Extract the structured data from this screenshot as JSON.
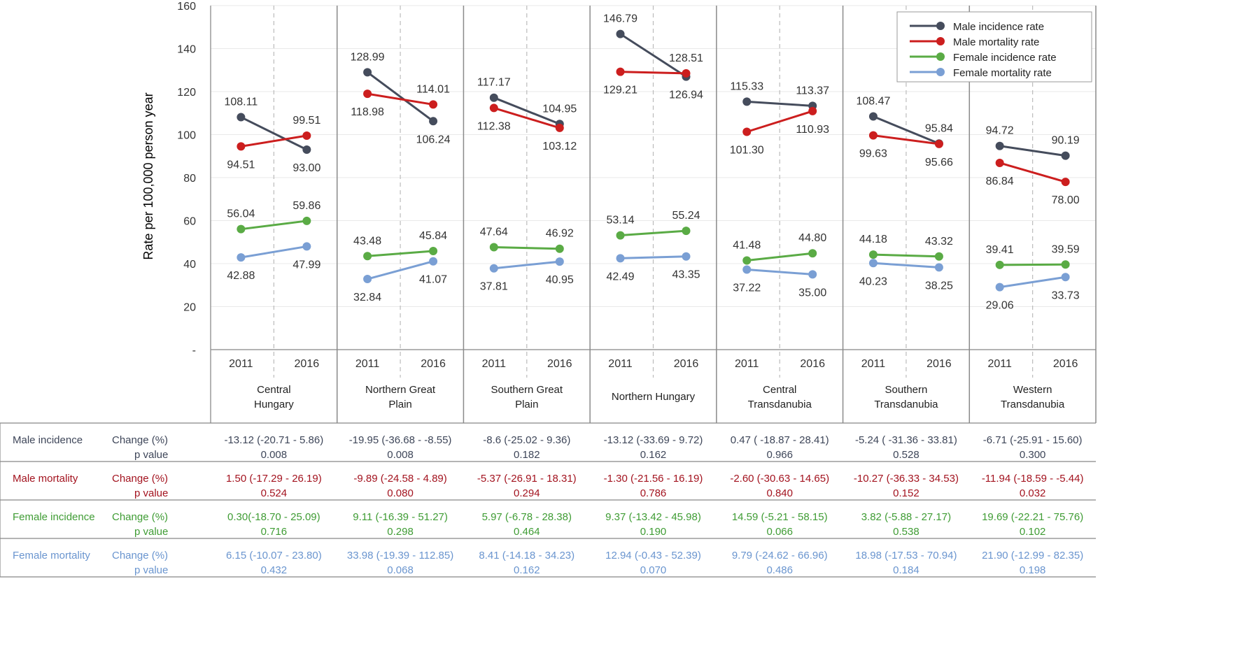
{
  "chart_data": {
    "type": "line",
    "ylabel": "Rate per 100,000 person year",
    "ylim": [
      0,
      160
    ],
    "yticks": [
      "-",
      "20",
      "40",
      "60",
      "80",
      "100",
      "120",
      "140",
      "160"
    ],
    "years": [
      "2011",
      "2016"
    ],
    "colors": {
      "male_incidence": "#454c5c",
      "male_mortality": "#cc1e1e",
      "female_incidence": "#5aab45",
      "female_mortality": "#7a9fd4"
    },
    "legend": {
      "position": "top-right",
      "entries": [
        "Male incidence rate",
        "Male mortality rate",
        "Female incidence rate",
        "Female mortality rate"
      ]
    },
    "regions": [
      {
        "name_lines": [
          "Central",
          "Hungary"
        ],
        "male_incidence": [
          108.11,
          93.0
        ],
        "male_mortality": [
          94.51,
          99.51
        ],
        "female_incidence": [
          56.04,
          59.86
        ],
        "female_mortality": [
          42.88,
          47.99
        ]
      },
      {
        "name_lines": [
          "Northern Great",
          "Plain"
        ],
        "male_incidence": [
          128.99,
          106.24
        ],
        "male_mortality": [
          118.98,
          114.01
        ],
        "female_incidence": [
          43.48,
          45.84
        ],
        "female_mortality": [
          32.84,
          41.07
        ]
      },
      {
        "name_lines": [
          "Southern Great",
          "Plain"
        ],
        "male_incidence": [
          117.17,
          104.95
        ],
        "male_mortality": [
          112.38,
          103.12
        ],
        "female_incidence": [
          47.64,
          46.92
        ],
        "female_mortality": [
          37.81,
          40.95
        ]
      },
      {
        "name_lines": [
          "Northern Hungary"
        ],
        "male_incidence": [
          146.79,
          126.94
        ],
        "male_mortality": [
          129.21,
          128.51
        ],
        "female_incidence": [
          53.14,
          55.24
        ],
        "female_mortality": [
          42.49,
          43.35
        ]
      },
      {
        "name_lines": [
          "Central",
          "Transdanubia"
        ],
        "male_incidence": [
          115.33,
          113.37
        ],
        "male_mortality": [
          101.3,
          110.93
        ],
        "female_incidence": [
          41.48,
          44.8
        ],
        "female_mortality": [
          37.22,
          35.0
        ]
      },
      {
        "name_lines": [
          "Southern",
          "Transdanubia"
        ],
        "male_incidence": [
          108.47,
          95.84
        ],
        "male_mortality": [
          99.63,
          95.66
        ],
        "female_incidence": [
          44.18,
          43.32
        ],
        "female_mortality": [
          40.23,
          38.25
        ]
      },
      {
        "name_lines": [
          "Western",
          "Transdanubia"
        ],
        "male_incidence": [
          94.72,
          90.19
        ],
        "male_mortality": [
          86.84,
          78.0
        ],
        "female_incidence": [
          39.41,
          39.59
        ],
        "female_mortality": [
          29.06,
          33.73
        ]
      }
    ],
    "labels": [
      [
        [
          "108.11",
          "93.00"
        ],
        [
          "94.51",
          "99.51"
        ],
        [
          "56.04",
          "59.86"
        ],
        [
          "42.88",
          "47.99"
        ]
      ],
      [
        [
          "128.99",
          "106.24"
        ],
        [
          "118.98",
          "114.01"
        ],
        [
          "43.48",
          "45.84"
        ],
        [
          "32.84",
          "41.07"
        ]
      ],
      [
        [
          "117.17",
          "104.95"
        ],
        [
          "112.38",
          "103.12"
        ],
        [
          "47.64",
          "46.92"
        ],
        [
          "37.81",
          "40.95"
        ]
      ],
      [
        [
          "146.79",
          "126.94"
        ],
        [
          "129.21",
          "128.51"
        ],
        [
          "53.14",
          "55.24"
        ],
        [
          "42.49",
          "43.35"
        ]
      ],
      [
        [
          "115.33",
          "113.37"
        ],
        [
          "101.30",
          "110.93"
        ],
        [
          "41.48",
          "44.80"
        ],
        [
          "37.22",
          "35.00"
        ]
      ],
      [
        [
          "108.47",
          "95.84"
        ],
        [
          "99.63",
          "95.66"
        ],
        [
          "44.18",
          "43.32"
        ],
        [
          "40.23",
          "38.25"
        ]
      ],
      [
        [
          "94.72",
          "90.19"
        ],
        [
          "86.84",
          "78.00"
        ],
        [
          "39.41",
          "39.59"
        ],
        [
          "29.06",
          "33.73"
        ]
      ]
    ],
    "table": {
      "rows": [
        {
          "group": "Male incidence",
          "key": "male_incidence",
          "change": [
            "-13.12 (-20.71 - 5.86)",
            "-19.95 (-36.68 - -8.55)",
            "-8.6 (-25.02 - 9.36)",
            "-13.12 (-33.69 - 9.72)",
            "0.47 ( -18.87 - 28.41)",
            "-5.24 ( -31.36 - 33.81)",
            "-6.71 (-25.91 - 15.60)"
          ],
          "p": [
            "0.008",
            "0.008",
            "0.182",
            "0.162",
            "0.966",
            "0.528",
            "0.300"
          ]
        },
        {
          "group": "Male mortality",
          "key": "male_mortality",
          "change": [
            "1.50 (-17.29 - 26.19)",
            "-9.89 (-24.58 - 4.89)",
            "-5.37 (-26.91 - 18.31)",
            "-1.30 (-21.56 - 16.19)",
            "-2.60 (-30.63 - 14.65)",
            "-10.27 (-36.33 - 34.53)",
            "-11.94 (-18.59 - -5.44)"
          ],
          "p": [
            "0.524",
            "0.080",
            "0.294",
            "0.786",
            "0.840",
            "0.152",
            "0.032"
          ]
        },
        {
          "group": "Female incidence",
          "key": "female_incidence",
          "change": [
            "0.30(-18.70 - 25.09)",
            "9.11 (-16.39 - 51.27)",
            "5.97 (-6.78 - 28.38)",
            "9.37 (-13.42 - 45.98)",
            "14.59 (-5.21 - 58.15)",
            "3.82 (-5.88 - 27.17)",
            "19.69 (-22.21 - 75.76)"
          ],
          "p": [
            "0.716",
            "0.298",
            "0.464",
            "0.190",
            "0.066",
            "0.538",
            "0.102"
          ]
        },
        {
          "group": "Female mortality",
          "key": "female_mortality",
          "change": [
            "6.15 (-10.07 - 23.80)",
            "33.98 (-19.39 - 112.85)",
            "8.41 (-14.18 - 34.23)",
            "12.94 (-0.43 - 52.39)",
            "9.79 (-24.62 - 66.96)",
            "18.98 (-17.53 - 70.94)",
            "21.90 (-12.99 - 82.35)"
          ],
          "p": [
            "0.432",
            "0.068",
            "0.162",
            "0.070",
            "0.486",
            "0.184",
            "0.198"
          ]
        }
      ],
      "change_label": "Change (%)",
      "p_label": "p value",
      "text_colors": {
        "male_incidence": "#3e4659",
        "male_mortality": "#a3131f",
        "female_incidence": "#3f9c34",
        "female_mortality": "#6a95cf"
      }
    }
  }
}
